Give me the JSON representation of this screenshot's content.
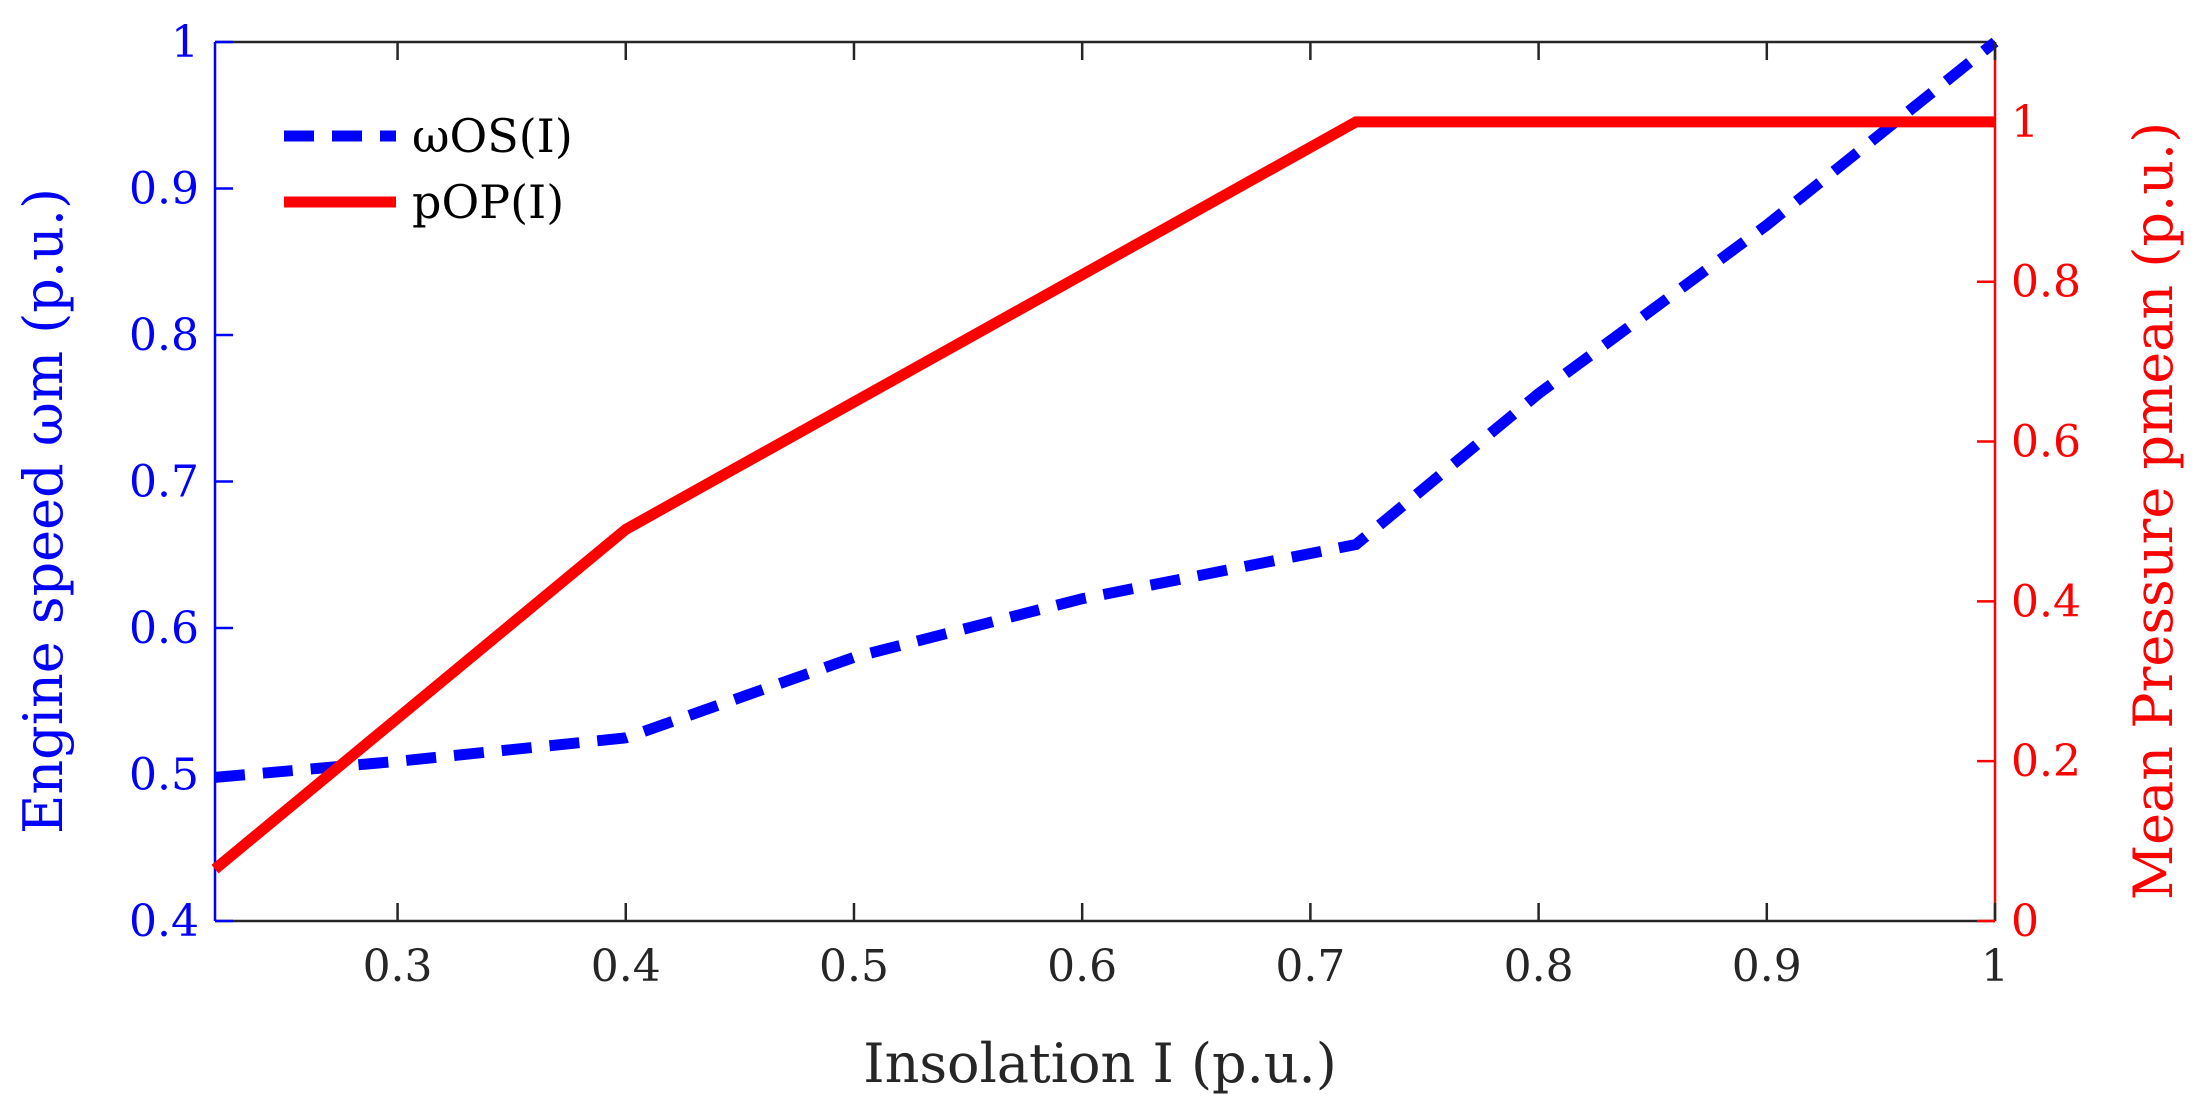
{
  "chart_data": {
    "type": "line",
    "title": "",
    "xlabel": "Insolation I (p.u.)",
    "ylabel_left": "Engine speed ωm (p.u.)",
    "ylabel_right": "Mean Pressure pmean (p.u.)",
    "xlim": [
      0.22,
      1.0
    ],
    "ylim_left": [
      0.4,
      1.0
    ],
    "ylim_right": [
      0,
      1.1
    ],
    "x_ticks": [
      0.3,
      0.4,
      0.5,
      0.6,
      0.7,
      0.8,
      0.9,
      1.0
    ],
    "x_tick_labels": [
      "0.3",
      "0.4",
      "0.5",
      "0.6",
      "0.7",
      "0.8",
      "0.9",
      "1"
    ],
    "y_left_ticks": [
      0.4,
      0.5,
      0.6,
      0.7,
      0.8,
      0.9,
      1.0
    ],
    "y_left_tick_labels": [
      "0.4",
      "0.5",
      "0.6",
      "0.7",
      "0.8",
      "0.9",
      "1"
    ],
    "y_right_ticks": [
      0,
      0.2,
      0.4,
      0.6,
      0.8,
      1.0
    ],
    "y_right_tick_labels": [
      "0",
      "0.2",
      "0.4",
      "0.6",
      "0.8",
      "1"
    ],
    "grid": false,
    "legend_position": "top-left",
    "series": [
      {
        "name": "ωOS(I)",
        "axis": "left",
        "style": "dashed",
        "color": "#0000ff",
        "x": [
          0.22,
          0.3,
          0.4,
          0.5,
          0.6,
          0.72,
          0.8,
          0.9,
          1.0
        ],
        "y": [
          0.498,
          0.509,
          0.525,
          0.58,
          0.62,
          0.657,
          0.76,
          0.875,
          1.0
        ]
      },
      {
        "name": "pOP(I)",
        "axis": "right",
        "style": "solid",
        "color": "#ff0000",
        "x": [
          0.22,
          0.4,
          0.72,
          1.0
        ],
        "y": [
          0.065,
          0.49,
          1.0,
          1.0
        ]
      }
    ]
  },
  "legend": {
    "series_labels": [
      "ωOS(I)",
      "pOP(I)"
    ]
  },
  "colors": {
    "left_axis": "#0000ff",
    "right_axis": "#ff0000",
    "bottom_axis": "#262626"
  }
}
